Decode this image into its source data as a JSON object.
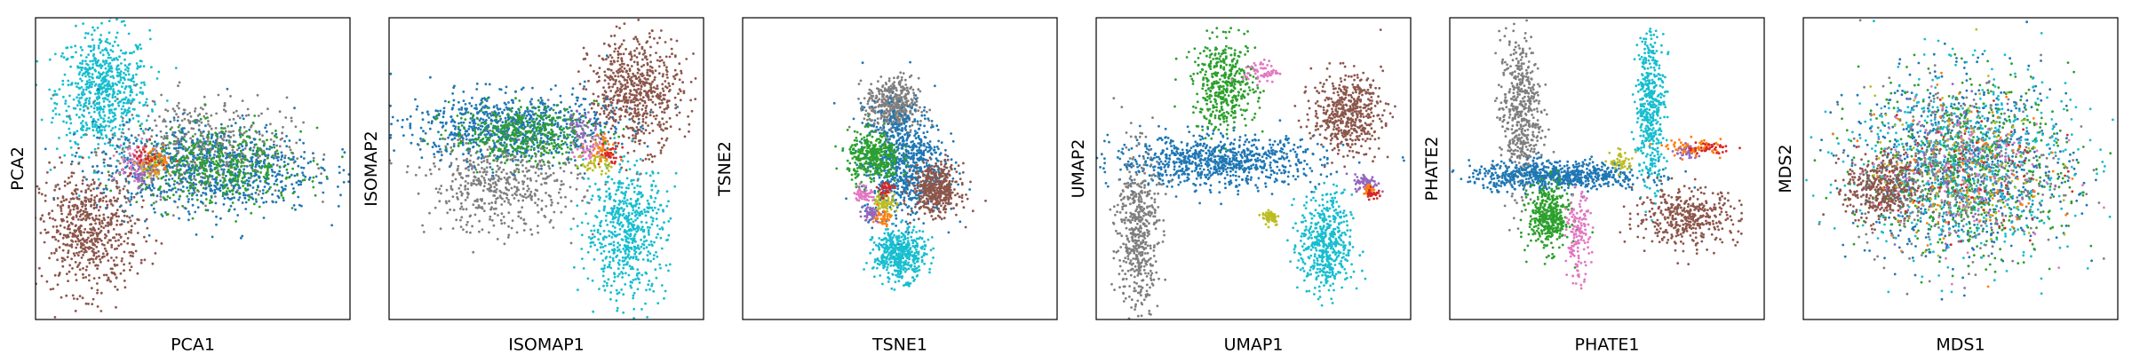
{
  "chart_data": [
    {
      "type": "scatter",
      "method": "PCA",
      "xlabel": "PCA1",
      "ylabel": "PCA2",
      "xticks": [],
      "yticks": [],
      "grid": false,
      "legend": "none",
      "clusters": [
        {
          "color": "#17becf",
          "center": [
            -0.62,
            0.55
          ],
          "spread": [
            0.16,
            0.22
          ],
          "n": 700
        },
        {
          "color": "#8c564b",
          "center": [
            -0.72,
            -0.45
          ],
          "spread": [
            0.17,
            0.22
          ],
          "n": 650
        },
        {
          "color": "#7f7f7f",
          "center": [
            0.05,
            0.15
          ],
          "spread": [
            0.3,
            0.18
          ],
          "n": 550
        },
        {
          "color": "#1f77b4",
          "center": [
            0.1,
            0.0
          ],
          "spread": [
            0.38,
            0.16
          ],
          "n": 800
        },
        {
          "color": "#2ca02c",
          "center": [
            0.2,
            0.0
          ],
          "spread": [
            0.28,
            0.14
          ],
          "n": 400
        },
        {
          "color": "#e377c2",
          "center": [
            -0.4,
            0.05
          ],
          "spread": [
            0.06,
            0.06
          ],
          "n": 60
        },
        {
          "color": "#bcbd22",
          "center": [
            -0.3,
            0.0
          ],
          "spread": [
            0.05,
            0.05
          ],
          "n": 50
        },
        {
          "color": "#9467bd",
          "center": [
            -0.35,
            -0.05
          ],
          "spread": [
            0.05,
            0.05
          ],
          "n": 40
        },
        {
          "color": "#ff7f0e",
          "center": [
            -0.25,
            0.05
          ],
          "spread": [
            0.05,
            0.05
          ],
          "n": 40
        },
        {
          "color": "#d62728",
          "center": [
            -0.32,
            0.1
          ],
          "spread": [
            0.05,
            0.05
          ],
          "n": 30
        }
      ]
    },
    {
      "type": "scatter",
      "method": "ISOMAP",
      "xlabel": "ISOMAP1",
      "ylabel": "ISOMAP2",
      "xticks": [],
      "yticks": [],
      "grid": false,
      "legend": "none",
      "clusters": [
        {
          "color": "#8c564b",
          "center": [
            0.62,
            0.55
          ],
          "spread": [
            0.16,
            0.2
          ],
          "n": 650
        },
        {
          "color": "#17becf",
          "center": [
            0.55,
            -0.45
          ],
          "spread": [
            0.14,
            0.24
          ],
          "n": 600
        },
        {
          "color": "#7f7f7f",
          "center": [
            -0.3,
            -0.1
          ],
          "spread": [
            0.26,
            0.18
          ],
          "n": 550
        },
        {
          "color": "#1f77b4",
          "center": [
            -0.25,
            0.3
          ],
          "spread": [
            0.35,
            0.12
          ],
          "n": 800
        },
        {
          "color": "#2ca02c",
          "center": [
            -0.15,
            0.25
          ],
          "spread": [
            0.25,
            0.1
          ],
          "n": 400
        },
        {
          "color": "#e377c2",
          "center": [
            0.3,
            0.15
          ],
          "spread": [
            0.05,
            0.05
          ],
          "n": 50
        },
        {
          "color": "#bcbd22",
          "center": [
            0.35,
            0.05
          ],
          "spread": [
            0.05,
            0.05
          ],
          "n": 50
        },
        {
          "color": "#9467bd",
          "center": [
            0.25,
            0.3
          ],
          "spread": [
            0.05,
            0.05
          ],
          "n": 40
        },
        {
          "color": "#ff7f0e",
          "center": [
            0.4,
            0.15
          ],
          "spread": [
            0.05,
            0.05
          ],
          "n": 40
        },
        {
          "color": "#d62728",
          "center": [
            0.45,
            0.1
          ],
          "spread": [
            0.04,
            0.04
          ],
          "n": 30
        }
      ]
    },
    {
      "type": "scatter",
      "method": "TSNE",
      "xlabel": "TSNE1",
      "ylabel": "TSNE2",
      "xticks": [],
      "yticks": [],
      "grid": false,
      "legend": "none",
      "clusters": [
        {
          "color": "#7f7f7f",
          "center": [
            -0.05,
            0.45
          ],
          "spread": [
            0.09,
            0.1
          ],
          "n": 450
        },
        {
          "color": "#1f77b4",
          "center": [
            0.02,
            0.05
          ],
          "spread": [
            0.14,
            0.2
          ],
          "n": 800
        },
        {
          "color": "#2ca02c",
          "center": [
            -0.18,
            0.08
          ],
          "spread": [
            0.09,
            0.09
          ],
          "n": 350
        },
        {
          "color": "#8c564b",
          "center": [
            0.25,
            -0.15
          ],
          "spread": [
            0.08,
            0.09
          ],
          "n": 450
        },
        {
          "color": "#17becf",
          "center": [
            0.0,
            -0.62
          ],
          "spread": [
            0.09,
            0.09
          ],
          "n": 450
        },
        {
          "color": "#e377c2",
          "center": [
            -0.25,
            -0.18
          ],
          "spread": [
            0.03,
            0.03
          ],
          "n": 60
        },
        {
          "color": "#bcbd22",
          "center": [
            -0.1,
            -0.25
          ],
          "spread": [
            0.04,
            0.04
          ],
          "n": 70
        },
        {
          "color": "#9467bd",
          "center": [
            -0.2,
            -0.32
          ],
          "spread": [
            0.03,
            0.03
          ],
          "n": 50
        },
        {
          "color": "#ff7f0e",
          "center": [
            -0.12,
            -0.35
          ],
          "spread": [
            0.03,
            0.03
          ],
          "n": 40
        },
        {
          "color": "#d62728",
          "center": [
            -0.1,
            -0.15
          ],
          "spread": [
            0.03,
            0.03
          ],
          "n": 40
        }
      ]
    },
    {
      "type": "scatter",
      "method": "UMAP",
      "xlabel": "UMAP1",
      "ylabel": "UMAP2",
      "xticks": [],
      "yticks": [],
      "grid": false,
      "legend": "none",
      "clusters": [
        {
          "color": "#1f77b4",
          "center": [
            -0.25,
            0.05
          ],
          "spread": [
            0.36,
            0.09
          ],
          "n": 850
        },
        {
          "color": "#2ca02c",
          "center": [
            -0.2,
            0.6
          ],
          "spread": [
            0.11,
            0.16
          ],
          "n": 450
        },
        {
          "color": "#7f7f7f",
          "center": [
            -0.8,
            -0.45
          ],
          "spread": [
            0.07,
            0.3
          ],
          "n": 500
        },
        {
          "color": "#8c564b",
          "center": [
            0.65,
            0.4
          ],
          "spread": [
            0.12,
            0.14
          ],
          "n": 500
        },
        {
          "color": "#17becf",
          "center": [
            0.5,
            -0.55
          ],
          "spread": [
            0.09,
            0.18
          ],
          "n": 500
        },
        {
          "color": "#e377c2",
          "center": [
            0.05,
            0.7
          ],
          "spread": [
            0.06,
            0.04
          ],
          "n": 60
        },
        {
          "color": "#bcbd22",
          "center": [
            0.12,
            -0.35
          ],
          "spread": [
            0.03,
            0.03
          ],
          "n": 60
        },
        {
          "color": "#9467bd",
          "center": [
            0.78,
            -0.1
          ],
          "spread": [
            0.04,
            0.03
          ],
          "n": 70
        },
        {
          "color": "#ff7f0e",
          "center": [
            0.8,
            -0.15
          ],
          "spread": [
            0.02,
            0.02
          ],
          "n": 30
        },
        {
          "color": "#d62728",
          "center": [
            0.82,
            -0.18
          ],
          "spread": [
            0.02,
            0.02
          ],
          "n": 30
        }
      ]
    },
    {
      "type": "scatter",
      "method": "PHATE",
      "xlabel": "PHATE1",
      "ylabel": "PHATE2",
      "xticks": [],
      "yticks": [],
      "grid": false,
      "legend": "none",
      "clusters": [
        {
          "color": "#7f7f7f",
          "center": [
            -0.6,
            0.4
          ],
          "spread": [
            0.07,
            0.28
          ],
          "n": 500
        },
        {
          "color": "#1f77b4",
          "center": [
            -0.35,
            -0.05
          ],
          "spread": [
            0.3,
            0.05
          ],
          "n": 700
        },
        {
          "color": "#2ca02c",
          "center": [
            -0.4,
            -0.35
          ],
          "spread": [
            0.07,
            0.12
          ],
          "n": 400
        },
        {
          "color": "#e377c2",
          "center": [
            -0.2,
            -0.5
          ],
          "spread": [
            0.04,
            0.15
          ],
          "n": 150
        },
        {
          "color": "#17becf",
          "center": [
            0.3,
            0.45
          ],
          "spread": [
            0.05,
            0.28
          ],
          "n": 450
        },
        {
          "color": "#8c564b",
          "center": [
            0.55,
            -0.35
          ],
          "spread": [
            0.18,
            0.1
          ],
          "n": 400
        },
        {
          "color": "#bcbd22",
          "center": [
            0.1,
            0.05
          ],
          "spread": [
            0.04,
            0.04
          ],
          "n": 50
        },
        {
          "color": "#9467bd",
          "center": [
            0.55,
            0.12
          ],
          "spread": [
            0.04,
            0.03
          ],
          "n": 40
        },
        {
          "color": "#ff7f0e",
          "center": [
            0.6,
            0.15
          ],
          "spread": [
            0.1,
            0.03
          ],
          "n": 60
        },
        {
          "color": "#d62728",
          "center": [
            0.7,
            0.15
          ],
          "spread": [
            0.08,
            0.02
          ],
          "n": 40
        }
      ]
    },
    {
      "type": "scatter",
      "method": "MDS",
      "xlabel": "MDS1",
      "ylabel": "MDS2",
      "xticks": [],
      "yticks": [],
      "grid": false,
      "legend": "none",
      "clusters": [
        {
          "color": "#1f77b4",
          "center": [
            0.0,
            0.0
          ],
          "spread": [
            0.38,
            0.32
          ],
          "n": 700
        },
        {
          "color": "#17becf",
          "center": [
            0.0,
            0.05
          ],
          "spread": [
            0.38,
            0.34
          ],
          "n": 650
        },
        {
          "color": "#2ca02c",
          "center": [
            0.05,
            0.0
          ],
          "spread": [
            0.36,
            0.32
          ],
          "n": 550
        },
        {
          "color": "#8c564b",
          "center": [
            -0.55,
            -0.15
          ],
          "spread": [
            0.12,
            0.12
          ],
          "n": 400
        },
        {
          "color": "#7f7f7f",
          "center": [
            0.0,
            0.0
          ],
          "spread": [
            0.35,
            0.3
          ],
          "n": 400
        },
        {
          "color": "#e377c2",
          "center": [
            0.0,
            0.0
          ],
          "spread": [
            0.3,
            0.28
          ],
          "n": 120
        },
        {
          "color": "#bcbd22",
          "center": [
            0.0,
            0.0
          ],
          "spread": [
            0.3,
            0.28
          ],
          "n": 120
        },
        {
          "color": "#9467bd",
          "center": [
            0.0,
            0.0
          ],
          "spread": [
            0.3,
            0.28
          ],
          "n": 100
        },
        {
          "color": "#ff7f0e",
          "center": [
            0.0,
            0.0
          ],
          "spread": [
            0.3,
            0.28
          ],
          "n": 100
        },
        {
          "color": "#d62728",
          "center": [
            0.0,
            0.0
          ],
          "spread": [
            0.3,
            0.28
          ],
          "n": 80
        }
      ]
    }
  ]
}
